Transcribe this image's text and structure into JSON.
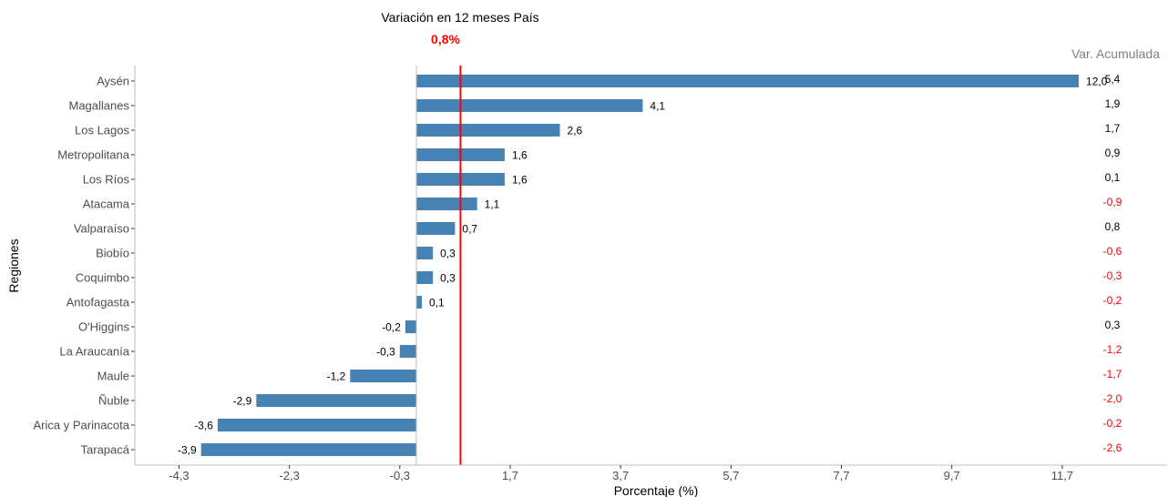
{
  "header": {
    "country_title": "Variación en 12 meses País",
    "country_value": "0,8%",
    "accum_title": "Var. Acumulada"
  },
  "colors": {
    "bar": "#4682b4",
    "reference_line": "#ff0000",
    "negative_accum": "#ff0000",
    "positive_accum": "#000000"
  },
  "chart_data": {
    "type": "bar",
    "orientation": "horizontal",
    "xlabel": "Porcentaje (%)",
    "ylabel": "Regiones",
    "xlim": [
      -5.1,
      13.6
    ],
    "x_ticks": [
      -4.3,
      -2.3,
      -0.3,
      1.7,
      3.7,
      5.7,
      7.7,
      9.7,
      11.7
    ],
    "x_tick_labels": [
      "-4,3",
      "-2,3",
      "-0,3",
      "1,7",
      "3,7",
      "5,7",
      "7,7",
      "9,7",
      "11,7"
    ],
    "baseline": 0,
    "reference_value": 0.8,
    "grid": false,
    "categories": [
      "Aysén",
      "Magallanes",
      "Los Lagos",
      "Metropolitana",
      "Los Ríos",
      "Atacama",
      "Valparaíso",
      "Biobío",
      "Coquimbo",
      "Antofagasta",
      "O'Higgins",
      "La Araucanía",
      "Maule",
      "Ñuble",
      "Arica y Parinacota",
      "Tarapacá"
    ],
    "values": [
      12.0,
      4.1,
      2.6,
      1.6,
      1.6,
      1.1,
      0.7,
      0.3,
      0.3,
      0.1,
      -0.2,
      -0.3,
      -1.2,
      -2.9,
      -3.6,
      -3.9
    ],
    "value_labels": [
      "12,0",
      "4,1",
      "2,6",
      "1,6",
      "1,6",
      "1,1",
      "0,7",
      "0,3",
      "0,3",
      "0,1",
      "-0,2",
      "-0,3",
      "-1,2",
      "-2,9",
      "-3,6",
      "-3,9"
    ],
    "accumulated": [
      5.4,
      1.9,
      1.7,
      0.9,
      0.1,
      -0.9,
      0.8,
      -0.6,
      -0.3,
      -0.2,
      0.3,
      -1.2,
      -1.7,
      -2.0,
      -0.2,
      -2.6
    ],
    "accumulated_labels": [
      "5,4",
      "1,9",
      "1,7",
      "0,9",
      "0,1",
      "-0,9",
      "0,8",
      "-0,6",
      "-0,3",
      "-0,2",
      "0,3",
      "-1,2",
      "-1,7",
      "-2,0",
      "-0,2",
      "-2,6"
    ]
  }
}
